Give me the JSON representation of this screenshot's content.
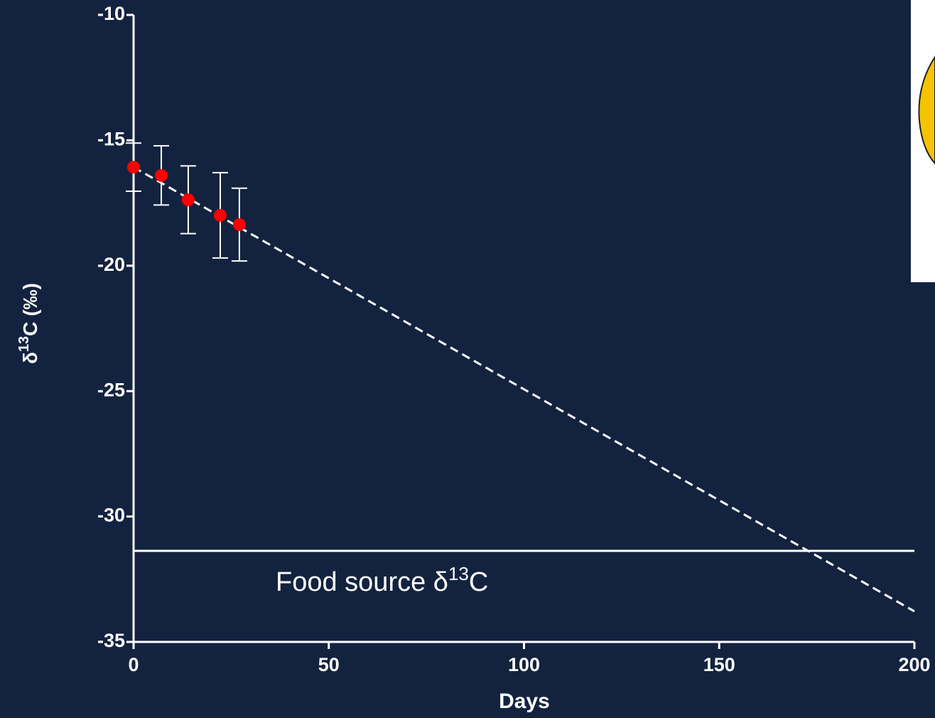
{
  "chart_data": {
    "type": "scatter",
    "xlabel": "Days",
    "ylabel": {
      "symbol": "δ",
      "sup": "13",
      "rest": "C (‰)"
    },
    "xlim": [
      0,
      200
    ],
    "ylim": [
      -35,
      -10
    ],
    "xticks": [
      0,
      50,
      100,
      150,
      200
    ],
    "yticks": [
      -10,
      -15,
      -20,
      -25,
      -30,
      -35
    ],
    "series": [
      {
        "color": "#ff0000",
        "x": [
          0,
          7.1,
          14,
          22.2,
          27.1
        ],
        "values": [
          -16.07,
          -16.4,
          -17.37,
          -17.99,
          -18.36
        ],
        "errors": [
          0.96,
          1.18,
          1.35,
          1.7,
          1.45
        ]
      }
    ],
    "fit_line": {
      "color": "#ffffff",
      "dashed": true,
      "x": [
        0,
        200
      ],
      "values": [
        -16.07,
        -33.78
      ]
    },
    "reference_line": {
      "value": -31.37,
      "color": "#ffffff",
      "label": {
        "text": "Food source δ",
        "sup": "13",
        "rest": "C"
      }
    }
  }
}
